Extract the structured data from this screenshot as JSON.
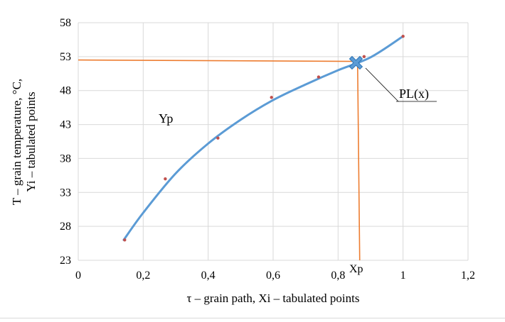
{
  "chart_data": {
    "type": "scatter",
    "xlabel": "τ – grain path, Xi – tabulated points",
    "ylabel": [
      "T – grain temperature, °C,",
      "Yi – tabulated points"
    ],
    "xlim": [
      0,
      1.2
    ],
    "ylim": [
      23,
      58
    ],
    "x_ticks": [
      "0",
      "0,2",
      "0,4",
      "0,6",
      "0,8",
      "1",
      "1,2"
    ],
    "y_ticks": [
      "23",
      "28",
      "33",
      "38",
      "43",
      "48",
      "53",
      "58"
    ],
    "grid": true,
    "points": [
      {
        "x": 0.143,
        "y": 26
      },
      {
        "x": 0.268,
        "y": 35
      },
      {
        "x": 0.43,
        "y": 41
      },
      {
        "x": 0.595,
        "y": 47
      },
      {
        "x": 0.74,
        "y": 50
      },
      {
        "x": 0.88,
        "y": 53
      },
      {
        "x": 1.0,
        "y": 56
      }
    ],
    "curve": [
      {
        "x": 0.14,
        "y": 26.0
      },
      {
        "x": 0.2,
        "y": 30.0
      },
      {
        "x": 0.3,
        "y": 35.8
      },
      {
        "x": 0.4,
        "y": 40.2
      },
      {
        "x": 0.5,
        "y": 43.7
      },
      {
        "x": 0.6,
        "y": 46.6
      },
      {
        "x": 0.7,
        "y": 48.9
      },
      {
        "x": 0.8,
        "y": 51.0
      },
      {
        "x": 0.9,
        "y": 52.9
      },
      {
        "x": 1.0,
        "y": 56.0
      }
    ],
    "special_point": {
      "x": 0.855,
      "y": 52.1
    },
    "guide_h_y": 52.3,
    "guide_v_x": 0.86,
    "annotations": {
      "yp": "Yp",
      "xp": "Xp",
      "pl": "PL(x)"
    },
    "colors": {
      "curve": "#5b9bd5",
      "guide": "#ed7d31",
      "points": "#c0504d",
      "grid": "#d9d9d9",
      "marker": "#5b9bd5"
    }
  }
}
